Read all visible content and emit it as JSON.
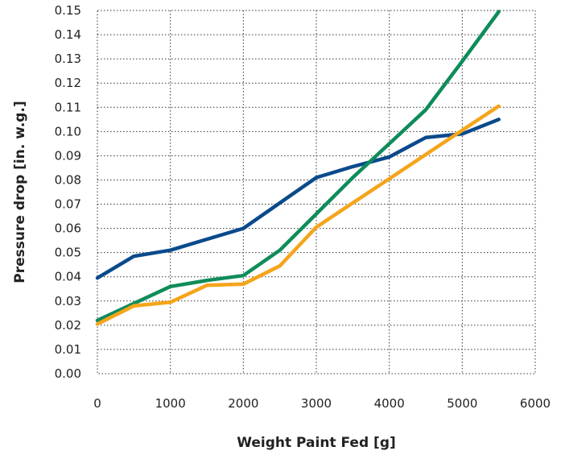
{
  "chart_data": {
    "type": "line",
    "title": "",
    "xlabel": "Weight Paint Fed [g]",
    "ylabel": "Pressure drop [in. w.g.]",
    "xlim": [
      0,
      6000
    ],
    "ylim": [
      0,
      0.15
    ],
    "xticks": [
      "0",
      "1000",
      "2000",
      "3000",
      "4000",
      "5000",
      "6000"
    ],
    "yticks": [
      "0.00",
      "0.01",
      "0.02",
      "0.03",
      "0.04",
      "0.05",
      "0.06",
      "0.07",
      "0.08",
      "0.09",
      "0.10",
      "0.11",
      "0.12",
      "0.13",
      "0.14",
      "0.15"
    ],
    "grid": true,
    "series": [
      {
        "color": "#0a4a8c",
        "points": [
          [
            0,
            0.0395
          ],
          [
            500,
            0.0485
          ],
          [
            1000,
            0.051
          ],
          [
            1500,
            0.0555
          ],
          [
            2000,
            0.06
          ],
          [
            2500,
            0.0705
          ],
          [
            3000,
            0.081
          ],
          [
            3500,
            0.0855
          ],
          [
            4000,
            0.0895
          ],
          [
            4500,
            0.0975
          ],
          [
            5000,
            0.099
          ],
          [
            5500,
            0.105
          ]
        ]
      },
      {
        "color": "#0e8c5a",
        "points": [
          [
            0,
            0.022
          ],
          [
            500,
            0.029
          ],
          [
            1000,
            0.036
          ],
          [
            1500,
            0.0385
          ],
          [
            2000,
            0.0405
          ],
          [
            2500,
            0.051
          ],
          [
            3000,
            0.066
          ],
          [
            3500,
            0.081
          ],
          [
            4000,
            0.095
          ],
          [
            4500,
            0.109
          ],
          [
            5000,
            0.129
          ],
          [
            5500,
            0.1495
          ]
        ]
      },
      {
        "color": "#f4a51c",
        "points": [
          [
            0,
            0.0205
          ],
          [
            500,
            0.028
          ],
          [
            1000,
            0.0295
          ],
          [
            1500,
            0.0365
          ],
          [
            2000,
            0.037
          ],
          [
            2500,
            0.0445
          ],
          [
            3000,
            0.0605
          ],
          [
            3500,
            0.0705
          ],
          [
            4000,
            0.0805
          ],
          [
            4500,
            0.0905
          ],
          [
            5000,
            0.1005
          ],
          [
            5500,
            0.1105
          ]
        ]
      }
    ]
  }
}
